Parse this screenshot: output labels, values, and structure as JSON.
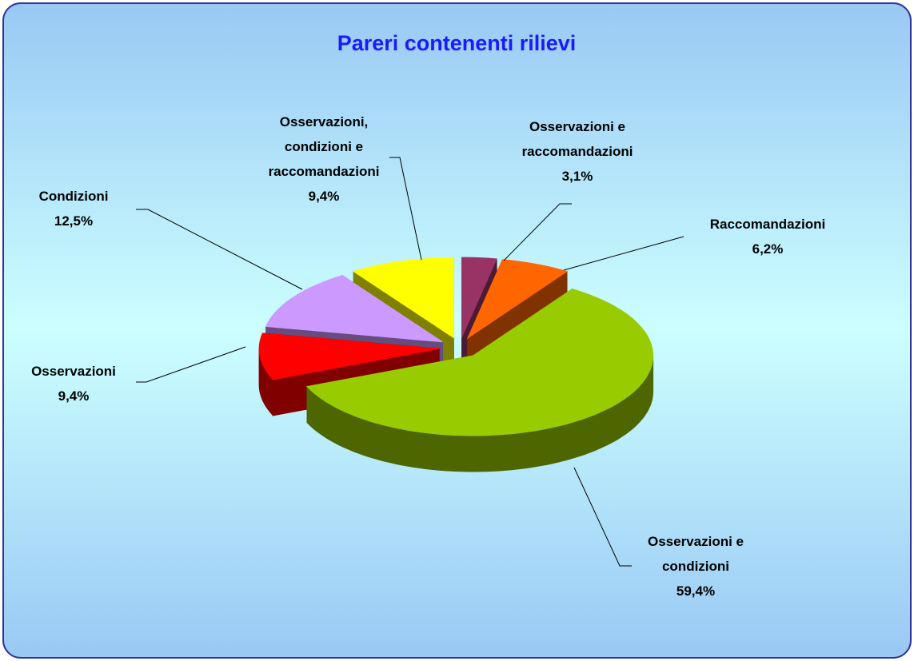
{
  "chart_data": {
    "type": "pie",
    "title": "Pareri contenenti rilievi",
    "categories": [
      "Osservazioni e raccomandazioni",
      "Raccomandazioni",
      "Osservazioni e condizioni",
      "Osservazioni",
      "Condizioni",
      "Osservazioni, condizioni e raccomandazioni"
    ],
    "values": [
      3.1,
      6.2,
      59.4,
      9.4,
      12.5,
      9.4
    ],
    "value_labels": [
      "3,1%",
      "6,2%",
      "59,4%",
      "9,4%",
      "12,5%",
      "9,4%"
    ],
    "colors": [
      "#993366",
      "#ff6600",
      "#99cc00",
      "#ff0000",
      "#cc99ff",
      "#ffff00"
    ]
  }
}
